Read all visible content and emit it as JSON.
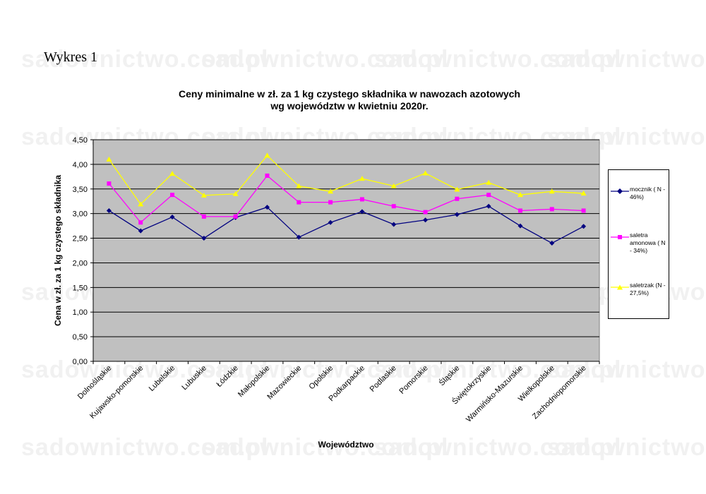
{
  "document": {
    "heading": "Wykres 1"
  },
  "watermark": "sadownictwo.com.pl",
  "chart_data": {
    "type": "line",
    "title_lines": [
      "Ceny minimalne  w zł. za 1 kg czystego składnika w nawozach azotowych",
      "wg województw w kwietniu 2020r."
    ],
    "xlabel": "Województwo",
    "ylabel": "Cena w zł. za 1 kg czystego składnika",
    "ylim": [
      0,
      4.5
    ],
    "ytick_labels": [
      "0,00",
      "0,50",
      "1,00",
      "1,50",
      "2,00",
      "2,50",
      "3,00",
      "3,50",
      "4,00",
      "4,50"
    ],
    "grid": true,
    "legend_position": "right",
    "plot_background": "#c0c0c0",
    "categories": [
      "Dolnośląskie",
      "Kujawsko-pomorskie",
      "Lubelskie",
      "Lubuskie",
      "Łódzkie",
      "Małopolskie",
      "Mazowieckie",
      "Opolskie",
      "Podkarpackie",
      "Podlaskie",
      "Pomorskie",
      "Śląskie",
      "Świętokrzyskie",
      "Warmińsko-Mazurskie",
      "Wielkopolskie",
      "Zachodniopomorskie"
    ],
    "series": [
      {
        "name": "mocznik ( N - 46%)",
        "color": "#000080",
        "marker": "diamond",
        "values": [
          3.06,
          2.65,
          2.93,
          2.5,
          2.92,
          3.13,
          2.52,
          2.82,
          3.04,
          2.78,
          2.87,
          2.98,
          3.15,
          2.75,
          2.4,
          2.74
        ]
      },
      {
        "name": "saletra amonowa ( N - 34%)",
        "color": "#ff00ff",
        "marker": "square",
        "values": [
          3.61,
          2.82,
          3.38,
          2.94,
          2.94,
          3.77,
          3.23,
          3.23,
          3.29,
          3.15,
          3.03,
          3.3,
          3.38,
          3.06,
          3.09,
          3.06
        ]
      },
      {
        "name": "saletrzak (N - 27,5%)",
        "color": "#ffff00",
        "marker": "triangle",
        "values": [
          4.1,
          3.19,
          3.81,
          3.37,
          3.4,
          4.18,
          3.56,
          3.45,
          3.71,
          3.56,
          3.82,
          3.49,
          3.63,
          3.38,
          3.45,
          3.41
        ]
      }
    ]
  }
}
